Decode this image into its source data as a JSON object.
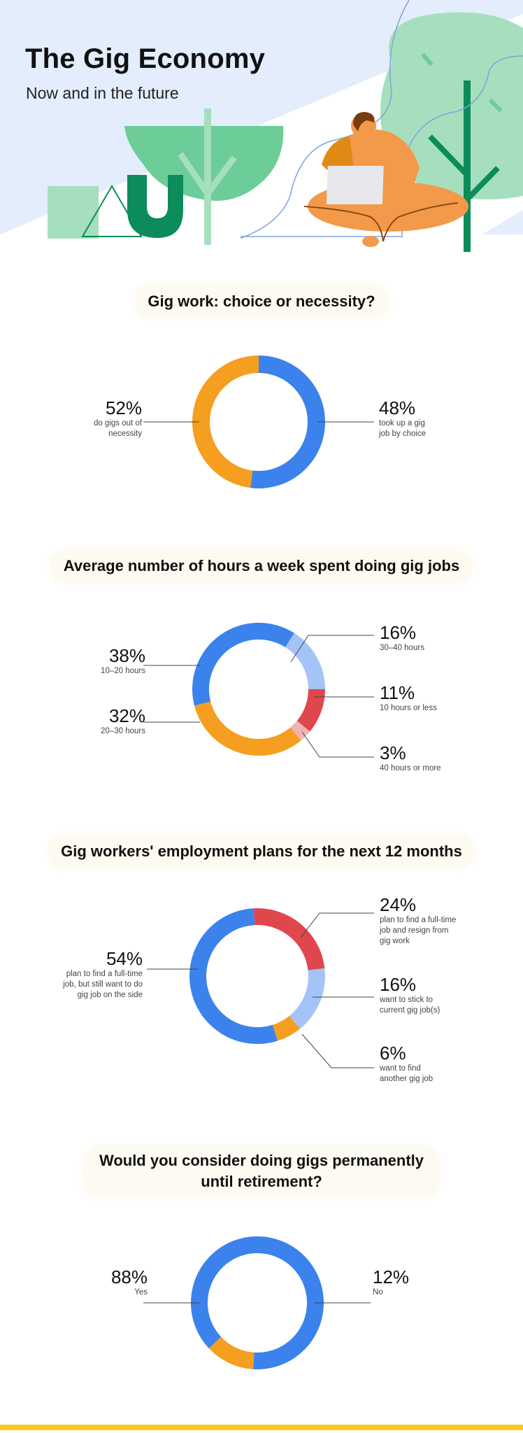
{
  "header": {
    "title": "The Gig Economy",
    "subtitle": "Now and in the future"
  },
  "colors": {
    "blue": "#3b82ed",
    "orange": "#f59e1f",
    "light_blue": "#a4c4f8",
    "red": "#e0474c",
    "pink": "#f1b3b5",
    "highlight_pill": "#fdfaf1",
    "footer_bar": "#f8c823"
  },
  "sections": [
    {
      "title": "Gig work: choice or necessity?",
      "labels": [
        {
          "pct": "52%",
          "desc": "do gigs out of necessity",
          "lines": [
            "do gigs out of",
            "necessity"
          ]
        },
        {
          "pct": "48%",
          "desc": "took up a gig job by choice",
          "lines": [
            "took up a gig",
            "job by choice"
          ]
        }
      ]
    },
    {
      "title": "Average number of hours a week spent doing gig jobs",
      "labels": [
        {
          "pct": "38%",
          "lines": [
            "10–20 hours"
          ]
        },
        {
          "pct": "32%",
          "lines": [
            "20–30 hours"
          ]
        },
        {
          "pct": "16%",
          "lines": [
            "30–40 hours"
          ]
        },
        {
          "pct": "11%",
          "lines": [
            "10 hours or less"
          ]
        },
        {
          "pct": "3%",
          "lines": [
            "40 hours or more"
          ]
        }
      ]
    },
    {
      "title": "Gig workers' employment plans for the next 12 months",
      "labels": [
        {
          "pct": "54%",
          "lines": [
            "plan to find a full-time",
            "job, but still want to do",
            "gig job on the side"
          ]
        },
        {
          "pct": "24%",
          "lines": [
            "plan to find a full-time",
            "job and resign from",
            "gig work"
          ]
        },
        {
          "pct": "16%",
          "lines": [
            "want to stick to",
            "current gig job(s)"
          ]
        },
        {
          "pct": "6%",
          "lines": [
            "want to find",
            "another gig job"
          ]
        }
      ]
    },
    {
      "title_line1": "Would you consider doing gigs permanently",
      "title_line2": "until retirement?",
      "labels": [
        {
          "pct": "88%",
          "lines": [
            "Yes"
          ]
        },
        {
          "pct": "12%",
          "lines": [
            "No"
          ]
        }
      ]
    }
  ],
  "chart_data": [
    {
      "type": "pie",
      "title": "Gig work: choice or necessity?",
      "categories": [
        "do gigs out of necessity",
        "took up a gig job by choice"
      ],
      "values": [
        52,
        48
      ],
      "colors": [
        "#3b82ed",
        "#f59e1f"
      ]
    },
    {
      "type": "pie",
      "title": "Average number of hours a week spent doing gig jobs",
      "categories": [
        "10-20 hours",
        "30-40 hours",
        "10 hours or less",
        "40 hours or more",
        "20-30 hours"
      ],
      "values": [
        38,
        16,
        11,
        3,
        32
      ],
      "colors": [
        "#3b82ed",
        "#a4c4f8",
        "#e0474c",
        "#f1b3b5",
        "#f59e1f"
      ]
    },
    {
      "type": "pie",
      "title": "Gig workers' employment plans for the next 12 months",
      "categories": [
        "plan to find a full-time job and resign from gig work",
        "want to stick to current gig job(s)",
        "want to find another gig job",
        "plan to find a full-time job, but still want to do gig job on the side"
      ],
      "values": [
        24,
        16,
        6,
        54
      ],
      "colors": [
        "#e0474c",
        "#a4c4f8",
        "#f59e1f",
        "#3b82ed"
      ]
    },
    {
      "type": "pie",
      "title": "Would you consider doing gigs permanently until retirement?",
      "categories": [
        "Yes",
        "No"
      ],
      "values": [
        88,
        12
      ],
      "colors": [
        "#3b82ed",
        "#f59e1f"
      ]
    }
  ]
}
